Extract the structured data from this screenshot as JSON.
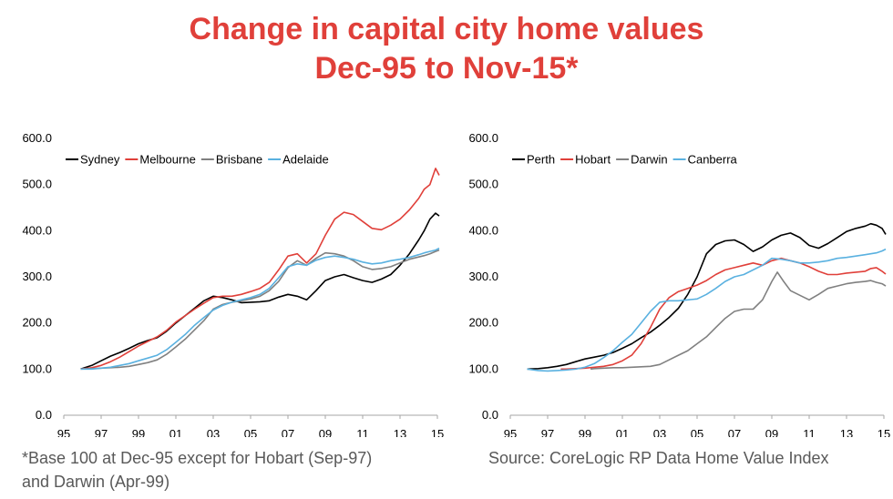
{
  "title": {
    "line1": "Change in capital city home values",
    "line2": "Dec-95 to Nov-15*"
  },
  "footnote": {
    "line1": "*Base 100 at Dec-95 except for Hobart (Sep-97)",
    "line2": "and Darwin (Apr-99)"
  },
  "source": "Source: CoreLogic RP Data Home Value Index",
  "chart_data": [
    {
      "type": "line",
      "title": "",
      "xlabel": "",
      "ylabel": "",
      "ylim": [
        0,
        600
      ],
      "xlim": [
        1995,
        2015
      ],
      "y_ticks": [
        "0.0",
        "100.0",
        "200.0",
        "300.0",
        "400.0",
        "500.0",
        "600.0"
      ],
      "x_ticks": [
        "95",
        "97",
        "99",
        "01",
        "03",
        "05",
        "07",
        "09",
        "11",
        "13",
        "15"
      ],
      "grid": false,
      "legend": "top-left",
      "series": [
        {
          "name": "Sydney",
          "color": "#000000",
          "x": [
            1995.9,
            1996.5,
            1997,
            1997.5,
            1998,
            1998.5,
            1999,
            1999.5,
            2000,
            2000.5,
            2001,
            2001.5,
            2002,
            2002.5,
            2003,
            2003.5,
            2004,
            2004.5,
            2005,
            2005.5,
            2006,
            2006.5,
            2007,
            2007.5,
            2008,
            2008.5,
            2009,
            2009.5,
            2010,
            2010.5,
            2011,
            2011.5,
            2012,
            2012.5,
            2013,
            2013.5,
            2014,
            2014.3,
            2014.6,
            2014.9,
            2015.1
          ],
          "y": [
            100,
            108,
            118,
            128,
            136,
            145,
            155,
            162,
            168,
            182,
            200,
            216,
            232,
            248,
            258,
            255,
            250,
            244,
            245,
            246,
            248,
            256,
            262,
            258,
            250,
            270,
            292,
            300,
            305,
            298,
            292,
            288,
            295,
            305,
            325,
            350,
            380,
            400,
            425,
            438,
            432
          ]
        },
        {
          "name": "Melbourne",
          "color": "#e0403a",
          "x": [
            1995.9,
            1996.5,
            1997,
            1997.5,
            1998,
            1998.5,
            1999,
            1999.5,
            2000,
            2000.5,
            2001,
            2001.5,
            2002,
            2002.5,
            2003,
            2003.5,
            2004,
            2004.5,
            2005,
            2005.5,
            2006,
            2006.5,
            2007,
            2007.5,
            2008,
            2008.5,
            2009,
            2009.5,
            2010,
            2010.5,
            2011,
            2011.5,
            2012,
            2012.5,
            2013,
            2013.5,
            2014,
            2014.3,
            2014.6,
            2014.9,
            2015.1
          ],
          "y": [
            100,
            103,
            108,
            116,
            126,
            138,
            150,
            160,
            170,
            184,
            202,
            216,
            230,
            243,
            255,
            258,
            258,
            262,
            268,
            275,
            288,
            315,
            345,
            350,
            330,
            350,
            390,
            425,
            440,
            435,
            420,
            405,
            402,
            412,
            425,
            445,
            470,
            490,
            500,
            535,
            520
          ]
        },
        {
          "name": "Brisbane",
          "color": "#808080",
          "x": [
            1995.9,
            1996.5,
            1997,
            1997.5,
            1998,
            1998.5,
            1999,
            1999.5,
            2000,
            2000.5,
            2001,
            2001.5,
            2002,
            2002.5,
            2003,
            2003.5,
            2004,
            2004.5,
            2005,
            2005.5,
            2006,
            2006.5,
            2007,
            2007.5,
            2008,
            2008.5,
            2009,
            2009.5,
            2010,
            2010.5,
            2011,
            2011.5,
            2012,
            2012.5,
            2013,
            2013.5,
            2014,
            2014.3,
            2014.6,
            2014.9,
            2015.1
          ],
          "y": [
            100,
            101,
            102,
            103,
            104,
            106,
            110,
            114,
            120,
            132,
            148,
            165,
            185,
            205,
            230,
            240,
            245,
            248,
            252,
            258,
            270,
            290,
            320,
            335,
            325,
            340,
            352,
            350,
            345,
            335,
            322,
            316,
            318,
            322,
            330,
            338,
            343,
            346,
            350,
            355,
            358
          ]
        },
        {
          "name": "Adelaide",
          "color": "#5ab1e0",
          "x": [
            1995.9,
            1996.5,
            1997,
            1997.5,
            1998,
            1998.5,
            1999,
            1999.5,
            2000,
            2000.5,
            2001,
            2001.5,
            2002,
            2002.5,
            2003,
            2003.5,
            2004,
            2004.5,
            2005,
            2005.5,
            2006,
            2006.5,
            2007,
            2007.5,
            2008,
            2008.5,
            2009,
            2009.5,
            2010,
            2010.5,
            2011,
            2011.5,
            2012,
            2012.5,
            2013,
            2013.5,
            2014,
            2014.3,
            2014.6,
            2014.9,
            2015.1
          ],
          "y": [
            100,
            100,
            102,
            104,
            108,
            112,
            118,
            124,
            130,
            142,
            158,
            175,
            195,
            212,
            228,
            238,
            245,
            250,
            255,
            262,
            275,
            298,
            322,
            328,
            325,
            336,
            342,
            345,
            342,
            338,
            332,
            328,
            330,
            335,
            338,
            342,
            348,
            352,
            355,
            358,
            362
          ]
        }
      ]
    },
    {
      "type": "line",
      "title": "",
      "xlabel": "",
      "ylabel": "",
      "ylim": [
        0,
        600
      ],
      "xlim": [
        1995,
        2015
      ],
      "y_ticks": [
        "0.0",
        "100.0",
        "200.0",
        "300.0",
        "400.0",
        "500.0",
        "600.0"
      ],
      "x_ticks": [
        "95",
        "97",
        "99",
        "01",
        "03",
        "05",
        "07",
        "09",
        "11",
        "13",
        "15"
      ],
      "grid": false,
      "legend": "top-left",
      "series": [
        {
          "name": "Perth",
          "color": "#000000",
          "x": [
            1995.9,
            1996.5,
            1997,
            1997.5,
            1998,
            1998.5,
            1999,
            1999.5,
            2000,
            2000.5,
            2001,
            2001.5,
            2002,
            2002.5,
            2003,
            2003.5,
            2004,
            2004.5,
            2005,
            2005.5,
            2006,
            2006.5,
            2007,
            2007.5,
            2008,
            2008.5,
            2009,
            2009.5,
            2010,
            2010.5,
            2011,
            2011.5,
            2012,
            2012.5,
            2013,
            2013.5,
            2014,
            2014.3,
            2014.6,
            2014.9,
            2015.1
          ],
          "y": [
            100,
            101,
            103,
            106,
            110,
            116,
            122,
            126,
            130,
            136,
            145,
            155,
            168,
            180,
            195,
            212,
            232,
            262,
            300,
            350,
            370,
            378,
            380,
            370,
            355,
            365,
            380,
            390,
            395,
            385,
            368,
            362,
            372,
            385,
            398,
            405,
            410,
            415,
            412,
            405,
            392
          ]
        },
        {
          "name": "Hobart",
          "color": "#e0403a",
          "x": [
            1997.7,
            1998,
            1998.5,
            1999,
            1999.5,
            2000,
            2000.5,
            2001,
            2001.5,
            2002,
            2002.5,
            2003,
            2003.5,
            2004,
            2004.5,
            2005,
            2005.5,
            2006,
            2006.5,
            2007,
            2007.5,
            2008,
            2008.5,
            2009,
            2009.5,
            2010,
            2010.5,
            2011,
            2011.5,
            2012,
            2012.5,
            2013,
            2013.5,
            2014,
            2014.3,
            2014.6,
            2014.9,
            2015.1
          ],
          "y": [
            100,
            100,
            101,
            102,
            104,
            106,
            110,
            118,
            130,
            155,
            190,
            230,
            255,
            268,
            275,
            282,
            292,
            305,
            315,
            320,
            325,
            330,
            325,
            335,
            340,
            335,
            330,
            322,
            312,
            305,
            305,
            308,
            310,
            312,
            318,
            320,
            312,
            306
          ]
        },
        {
          "name": "Darwin",
          "color": "#808080",
          "x": [
            1999.3,
            1999.5,
            2000,
            2000.5,
            2001,
            2001.5,
            2002,
            2002.5,
            2003,
            2003.5,
            2004,
            2004.5,
            2005,
            2005.5,
            2006,
            2006.5,
            2007,
            2007.5,
            2008,
            2008.5,
            2009,
            2009.3,
            2009.6,
            2010,
            2010.5,
            2011,
            2011.5,
            2012,
            2012.5,
            2013,
            2013.5,
            2014,
            2014.3,
            2014.6,
            2014.9,
            2015.1
          ],
          "y": [
            100,
            101,
            102,
            103,
            103,
            104,
            105,
            106,
            110,
            120,
            130,
            140,
            155,
            170,
            190,
            210,
            225,
            230,
            230,
            250,
            290,
            310,
            292,
            270,
            260,
            250,
            262,
            275,
            280,
            285,
            288,
            290,
            292,
            288,
            285,
            280
          ]
        },
        {
          "name": "Canberra",
          "color": "#5ab1e0",
          "x": [
            1995.9,
            1996.5,
            1997,
            1997.5,
            1998,
            1998.5,
            1999,
            1999.5,
            2000,
            2000.5,
            2001,
            2001.5,
            2002,
            2002.5,
            2003,
            2003.5,
            2004,
            2004.5,
            2005,
            2005.5,
            2006,
            2006.5,
            2007,
            2007.5,
            2008,
            2008.5,
            2009,
            2009.5,
            2010,
            2010.5,
            2011,
            2011.5,
            2012,
            2012.5,
            2013,
            2013.5,
            2014,
            2014.3,
            2014.6,
            2014.9,
            2015.1
          ],
          "y": [
            100,
            97,
            96,
            97,
            98,
            100,
            104,
            112,
            125,
            140,
            158,
            175,
            200,
            225,
            245,
            248,
            248,
            250,
            252,
            262,
            275,
            290,
            300,
            305,
            315,
            325,
            340,
            338,
            335,
            330,
            330,
            332,
            335,
            340,
            342,
            345,
            348,
            350,
            352,
            356,
            360
          ]
        }
      ]
    }
  ]
}
